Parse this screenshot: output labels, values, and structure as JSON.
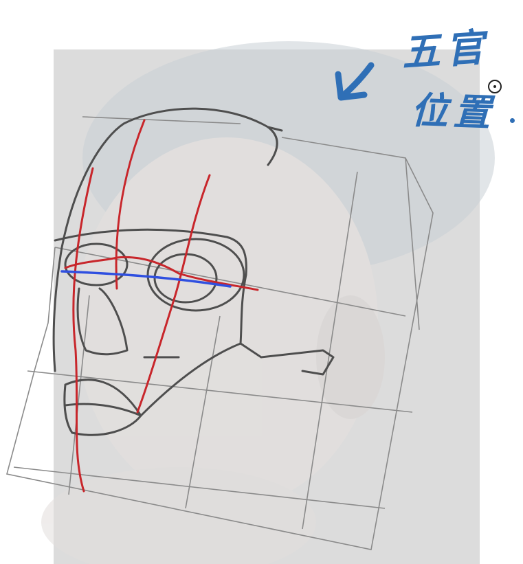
{
  "annotation": {
    "line1": "五官",
    "line2": "位置",
    "color": "#2f6fb6"
  },
  "colors": {
    "sketch_gray": "#555555",
    "guide_red": "#c8262b",
    "guide_blue": "#2f4fe0",
    "photo_background": "#dcdcdc"
  },
  "icons": {
    "arrow": "down-left-arrow-icon",
    "cursor": "brush-cursor-icon"
  }
}
